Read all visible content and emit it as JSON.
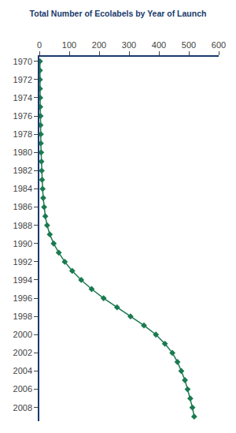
{
  "chart_data": {
    "type": "line",
    "title": "Total Number of Ecolabels by Year of Launch",
    "orientation": "horizontal",
    "x": [
      1970,
      1971,
      1972,
      1973,
      1974,
      1975,
      1976,
      1977,
      1978,
      1979,
      1980,
      1981,
      1982,
      1983,
      1984,
      1985,
      1986,
      1987,
      1988,
      1989,
      1990,
      1991,
      1992,
      1993,
      1994,
      1995,
      1996,
      1997,
      1998,
      1999,
      2000,
      2001,
      2002,
      2003,
      2004,
      2005,
      2006,
      2007,
      2008,
      2009
    ],
    "values": [
      2,
      2,
      2,
      2,
      3,
      3,
      4,
      4,
      5,
      5,
      6,
      7,
      8,
      9,
      11,
      13,
      16,
      20,
      26,
      35,
      48,
      65,
      85,
      110,
      140,
      175,
      215,
      260,
      305,
      350,
      390,
      420,
      445,
      462,
      475,
      487,
      496,
      505,
      512,
      518
    ],
    "color": "#1a7a50",
    "marker": "diamond",
    "xlim": [
      0,
      600
    ],
    "xticks": [
      0,
      100,
      200,
      300,
      400,
      500,
      600
    ],
    "ylim": [
      2009.5,
      1969.5
    ],
    "yticks": [
      1970,
      1972,
      1974,
      1976,
      1978,
      1980,
      1982,
      1984,
      1986,
      1988,
      1990,
      1992,
      1994,
      1996,
      1998,
      2000,
      2002,
      2004,
      2006,
      2008
    ],
    "grid": false
  }
}
